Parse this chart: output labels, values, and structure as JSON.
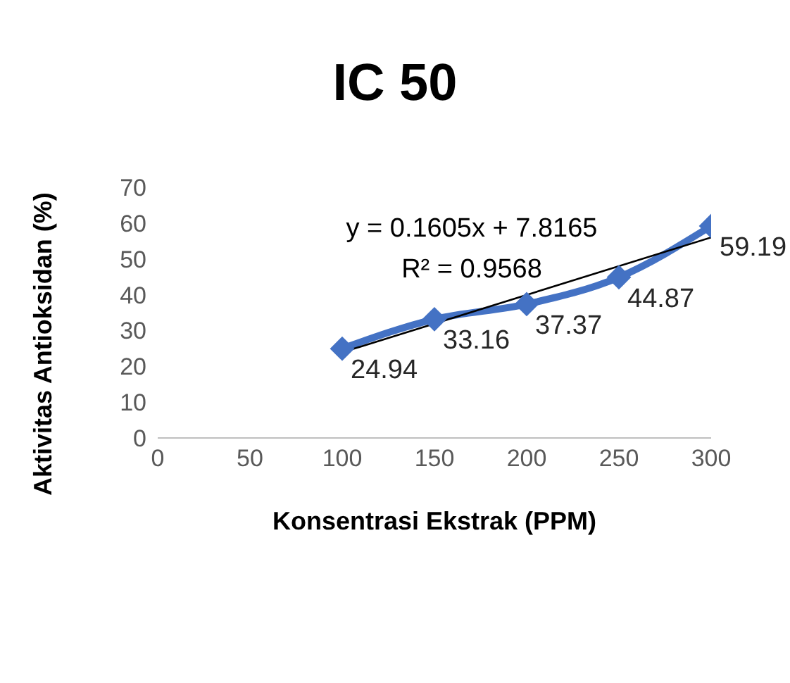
{
  "chart_data": {
    "type": "line",
    "title": "IC 50",
    "xlabel": "Konsentrasi Ekstrak (PPM)",
    "ylabel": "Aktivitas Antioksidan (%)",
    "x": [
      100,
      150,
      200,
      250,
      300
    ],
    "series": [
      {
        "color": "#4472c4",
        "values": [
          24.94,
          33.16,
          37.37,
          44.87,
          59.19
        ],
        "marker": "diamond",
        "data_labels": true
      },
      {
        "type": "line",
        "color": "#000000",
        "x": [
          100,
          300
        ],
        "values": [
          23.9,
          56
        ],
        "marker": "none"
      }
    ],
    "annotations": [
      "y = 0.1605x + 7.8165",
      "R² = 0.9568"
    ],
    "xlim": [
      0,
      300
    ],
    "xticks": [
      0,
      50,
      100,
      150,
      200,
      250,
      300
    ],
    "ylim": [
      0,
      70
    ],
    "yticks": [
      0,
      10,
      20,
      30,
      40,
      50,
      60,
      70
    ]
  }
}
